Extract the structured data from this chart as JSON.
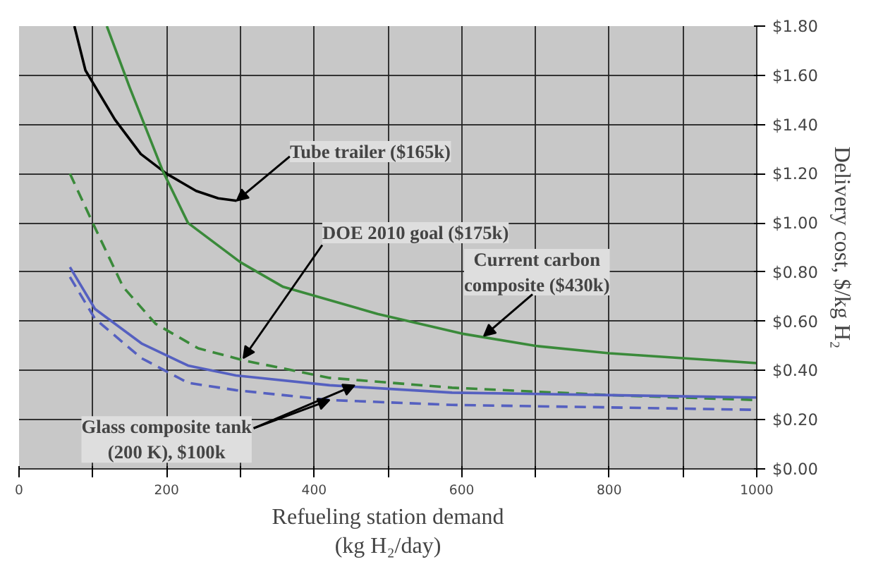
{
  "chart_data": {
    "type": "line",
    "xlabel": "Refueling station demand\n(kg H₂/day)",
    "ylabel": "Delivery cost, $/kg H₂",
    "xlim": [
      0,
      1000
    ],
    "ylim": [
      0,
      1.8
    ],
    "xticks": [
      0,
      {
        "value": 100,
        "label": null
      },
      200,
      {
        "value": 300,
        "label": null
      },
      400,
      {
        "value": 500,
        "label": null
      },
      600,
      {
        "value": 700,
        "label": null
      },
      800,
      {
        "value": 900,
        "label": null
      },
      1000
    ],
    "yticks": [
      {
        "value": 0,
        "label": "$0.00"
      },
      {
        "value": 0.2,
        "label": "$0.20"
      },
      {
        "value": 0.4,
        "label": "$0.40"
      },
      {
        "value": 0.6,
        "label": "$0.60"
      },
      {
        "value": 0.8,
        "label": "$0.80"
      },
      {
        "value": 1.0,
        "label": "$1.00"
      },
      {
        "value": 1.2,
        "label": "$1.20"
      },
      {
        "value": 1.4,
        "label": "$1.40"
      },
      {
        "value": 1.6,
        "label": "$1.60"
      },
      {
        "value": 1.8,
        "label": "$1.80"
      }
    ],
    "grid": true,
    "marker": "none",
    "series": [
      {
        "color": "#000000",
        "line_style": "solid",
        "x": [
          75,
          90,
          100,
          130,
          165,
          200,
          240,
          270,
          295
        ],
        "values": [
          1.8,
          1.62,
          1.57,
          1.42,
          1.28,
          1.2,
          1.13,
          1.1,
          1.09
        ]
      },
      {
        "color": "#3a8a3a",
        "line_style": "solid",
        "x": [
          119,
          150,
          195,
          229,
          300,
          358,
          486,
          600,
          700,
          800,
          900,
          1000
        ],
        "values": [
          1.8,
          1.55,
          1.21,
          1.0,
          0.84,
          0.74,
          0.63,
          0.55,
          0.5,
          0.47,
          0.45,
          0.43
        ]
      },
      {
        "color": "#3a8a3a",
        "line_style": "dashed",
        "x": [
          69,
          103,
          141,
          185,
          243,
          306,
          421,
          587,
          800,
          1000
        ],
        "values": [
          1.2,
          0.98,
          0.74,
          0.59,
          0.49,
          0.44,
          0.37,
          0.33,
          0.3,
          0.28
        ]
      },
      {
        "color": "#5560c0",
        "line_style": "solid",
        "x": [
          69,
          103,
          166,
          229,
          294,
          421,
          587,
          800,
          1000
        ],
        "values": [
          0.82,
          0.65,
          0.51,
          0.42,
          0.38,
          0.34,
          0.31,
          0.3,
          0.29
        ]
      },
      {
        "color": "#5560c0",
        "line_style": "dashed",
        "x": [
          69,
          103,
          166,
          229,
          294,
          421,
          587,
          800,
          1000
        ],
        "values": [
          0.78,
          0.61,
          0.45,
          0.35,
          0.32,
          0.28,
          0.26,
          0.25,
          0.24
        ]
      }
    ],
    "annotations": [
      {
        "text": "Tube trailer ($165k)",
        "x": 295,
        "y": 1.09
      },
      {
        "text": "DOE 2010 goal ($175k)",
        "x": 304,
        "y": 0.45
      },
      {
        "text": "Current carbon\ncomposite ($430k)",
        "x": 630,
        "y": 0.54
      },
      {
        "text": "Glass composite tank\n(200 K), $100k",
        "x": 455,
        "y": 0.34
      }
    ]
  }
}
